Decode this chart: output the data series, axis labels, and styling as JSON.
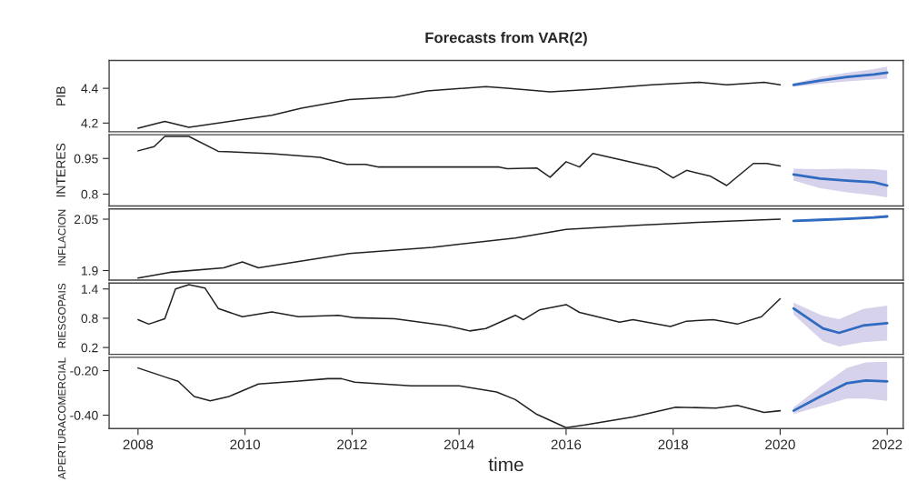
{
  "chart_data": [
    {
      "type": "line",
      "title": "Forecasts from VAR(2)",
      "ylabel": "PIB",
      "xlim": [
        2007.46,
        2022.3
      ],
      "ylim": [
        4.15,
        4.56
      ],
      "yticks": [
        4.2,
        4.4
      ],
      "tick_labels": "y",
      "grid": false,
      "legend": false,
      "series": [
        {
          "color": "#222222",
          "x": [
            2008,
            2008.5,
            2008.95,
            2010.5,
            2011.05,
            2011.95,
            2012.8,
            2013.4,
            2014.5,
            2014.9,
            2015.7,
            2016.55,
            2017.6,
            2018.5,
            2019.0,
            2019.7,
            2020.0
          ],
          "values": [
            4.17,
            4.21,
            4.175,
            4.245,
            4.285,
            4.335,
            4.35,
            4.385,
            4.41,
            4.4,
            4.38,
            4.395,
            4.42,
            4.435,
            4.42,
            4.435,
            4.42
          ]
        },
        {
          "color": "#2f6bc0",
          "x": [
            2020.25,
            2020.75,
            2021.25,
            2021.75,
            2022
          ],
          "values": [
            4.42,
            4.445,
            4.465,
            4.48,
            4.49
          ],
          "lower": [
            4.41,
            4.425,
            4.44,
            4.45,
            4.455
          ],
          "upper": [
            4.43,
            4.465,
            4.49,
            4.51,
            4.525
          ]
        }
      ]
    },
    {
      "type": "line",
      "ylabel": "INTERES",
      "xlim": [
        2007.46,
        2022.3
      ],
      "ylim": [
        0.75,
        1.05
      ],
      "yticks": [
        0.8,
        0.95
      ],
      "tick_labels": "y",
      "grid": false,
      "legend": false,
      "series": [
        {
          "color": "#222222",
          "x": [
            2008,
            2008.3,
            2008.5,
            2008.95,
            2009.5,
            2010.5,
            2011.4,
            2011.9,
            2012.25,
            2012.5,
            2014.75,
            2014.9,
            2015.45,
            2015.7,
            2016.0,
            2016.25,
            2016.5,
            2017.7,
            2018.0,
            2018.25,
            2018.7,
            2019.0,
            2019.5,
            2019.75,
            2020.0
          ],
          "values": [
            0.982,
            1.0,
            1.043,
            1.043,
            0.98,
            0.97,
            0.955,
            0.925,
            0.925,
            0.914,
            0.914,
            0.907,
            0.91,
            0.871,
            0.936,
            0.914,
            0.971,
            0.91,
            0.868,
            0.9,
            0.875,
            0.836,
            0.929,
            0.929,
            0.918
          ]
        },
        {
          "color": "#2f6bc0",
          "x": [
            2020.25,
            2020.75,
            2021.25,
            2021.75,
            2022
          ],
          "values": [
            0.882,
            0.865,
            0.857,
            0.85,
            0.836
          ],
          "lower": [
            0.857,
            0.825,
            0.807,
            0.795,
            0.786
          ],
          "upper": [
            0.907,
            0.905,
            0.907,
            0.905,
            0.9
          ]
        }
      ]
    },
    {
      "type": "line",
      "ylabel": "INFLACION",
      "xlim": [
        2007.46,
        2022.3
      ],
      "ylim": [
        1.872,
        2.08
      ],
      "yticks": [
        1.9,
        2.05
      ],
      "tick_labels": "y",
      "grid": false,
      "legend": false,
      "series": [
        {
          "color": "#222222",
          "x": [
            2008,
            2008.6,
            2009.6,
            2009.95,
            2010.25,
            2011.95,
            2013.5,
            2015.05,
            2016.0,
            2017.4,
            2018.8,
            2020.0
          ],
          "values": [
            1.878,
            1.895,
            1.908,
            1.925,
            1.908,
            1.95,
            1.968,
            1.995,
            2.02,
            2.033,
            2.043,
            2.05
          ]
        },
        {
          "color": "#2f6bc0",
          "x": [
            2020.25,
            2020.75,
            2021.25,
            2021.75,
            2022
          ],
          "values": [
            2.045,
            2.048,
            2.051,
            2.055,
            2.058
          ],
          "lower": [
            2.043,
            2.045,
            2.048,
            2.051,
            2.054
          ],
          "upper": [
            2.047,
            2.051,
            2.054,
            2.059,
            2.061
          ]
        }
      ]
    },
    {
      "type": "line",
      "ylabel": "RIESGOPAIS",
      "xlim": [
        2007.46,
        2022.3
      ],
      "ylim": [
        0.06,
        1.52
      ],
      "yticks": [
        0.2,
        0.8,
        1.4
      ],
      "tick_labels": "y",
      "grid": false,
      "legend": false,
      "series": [
        {
          "color": "#222222",
          "x": [
            2008,
            2008.2,
            2008.5,
            2008.7,
            2008.95,
            2009.25,
            2009.5,
            2009.95,
            2010.5,
            2011.0,
            2011.75,
            2012.05,
            2012.8,
            2013.75,
            2014.2,
            2014.5,
            2015.05,
            2015.2,
            2015.5,
            2016.0,
            2016.25,
            2017.0,
            2017.25,
            2017.95,
            2018.25,
            2018.75,
            2019.2,
            2019.65,
            2020.0
          ],
          "values": [
            0.77,
            0.68,
            0.79,
            1.4,
            1.49,
            1.42,
            1.0,
            0.83,
            0.93,
            0.83,
            0.86,
            0.81,
            0.79,
            0.65,
            0.54,
            0.59,
            0.86,
            0.77,
            0.97,
            1.08,
            0.92,
            0.72,
            0.77,
            0.63,
            0.74,
            0.77,
            0.68,
            0.83,
            1.2
          ]
        },
        {
          "color": "#2f6bc0",
          "x": [
            2020.25,
            2020.8,
            2021.1,
            2021.55,
            2022
          ],
          "values": [
            1.0,
            0.59,
            0.5,
            0.65,
            0.7
          ],
          "lower": [
            0.88,
            0.33,
            0.22,
            0.31,
            0.34
          ],
          "upper": [
            1.12,
            0.85,
            0.78,
            0.99,
            1.06
          ]
        }
      ]
    },
    {
      "type": "line",
      "ylabel": "APERTURACOMERCIAL",
      "xlabel": "time",
      "xlim": [
        2007.46,
        2022.3
      ],
      "xticks": [
        2008,
        2010,
        2012,
        2014,
        2016,
        2018,
        2020,
        2022
      ],
      "ylim": [
        -0.46,
        -0.14
      ],
      "yticks": [
        {
          "value": -0.4,
          "label": "-0.40"
        },
        {
          "value": -0.2,
          "label": "-0.20"
        }
      ],
      "grid": false,
      "legend": false,
      "series": [
        {
          "color": "#222222",
          "x": [
            2008,
            2008.6,
            2008.75,
            2009.05,
            2009.35,
            2009.7,
            2010.25,
            2010.95,
            2011.55,
            2011.8,
            2012.05,
            2013.1,
            2014.0,
            2014.7,
            2015.05,
            2015.45,
            2016.0,
            2016.35,
            2017.25,
            2018.05,
            2018.8,
            2019.2,
            2019.7,
            2020.0
          ],
          "values": [
            -0.188,
            -0.236,
            -0.248,
            -0.316,
            -0.336,
            -0.316,
            -0.26,
            -0.248,
            -0.236,
            -0.236,
            -0.252,
            -0.268,
            -0.268,
            -0.296,
            -0.33,
            -0.396,
            -0.456,
            -0.444,
            -0.408,
            -0.364,
            -0.368,
            -0.356,
            -0.388,
            -0.38
          ]
        },
        {
          "color": "#2f6bc0",
          "x": [
            2020.25,
            2020.75,
            2021.25,
            2021.6,
            2022
          ],
          "values": [
            -0.38,
            -0.316,
            -0.256,
            -0.244,
            -0.248
          ],
          "lower": [
            -0.395,
            -0.36,
            -0.325,
            -0.325,
            -0.336
          ],
          "upper": [
            -0.365,
            -0.272,
            -0.187,
            -0.163,
            -0.16
          ]
        }
      ]
    }
  ]
}
